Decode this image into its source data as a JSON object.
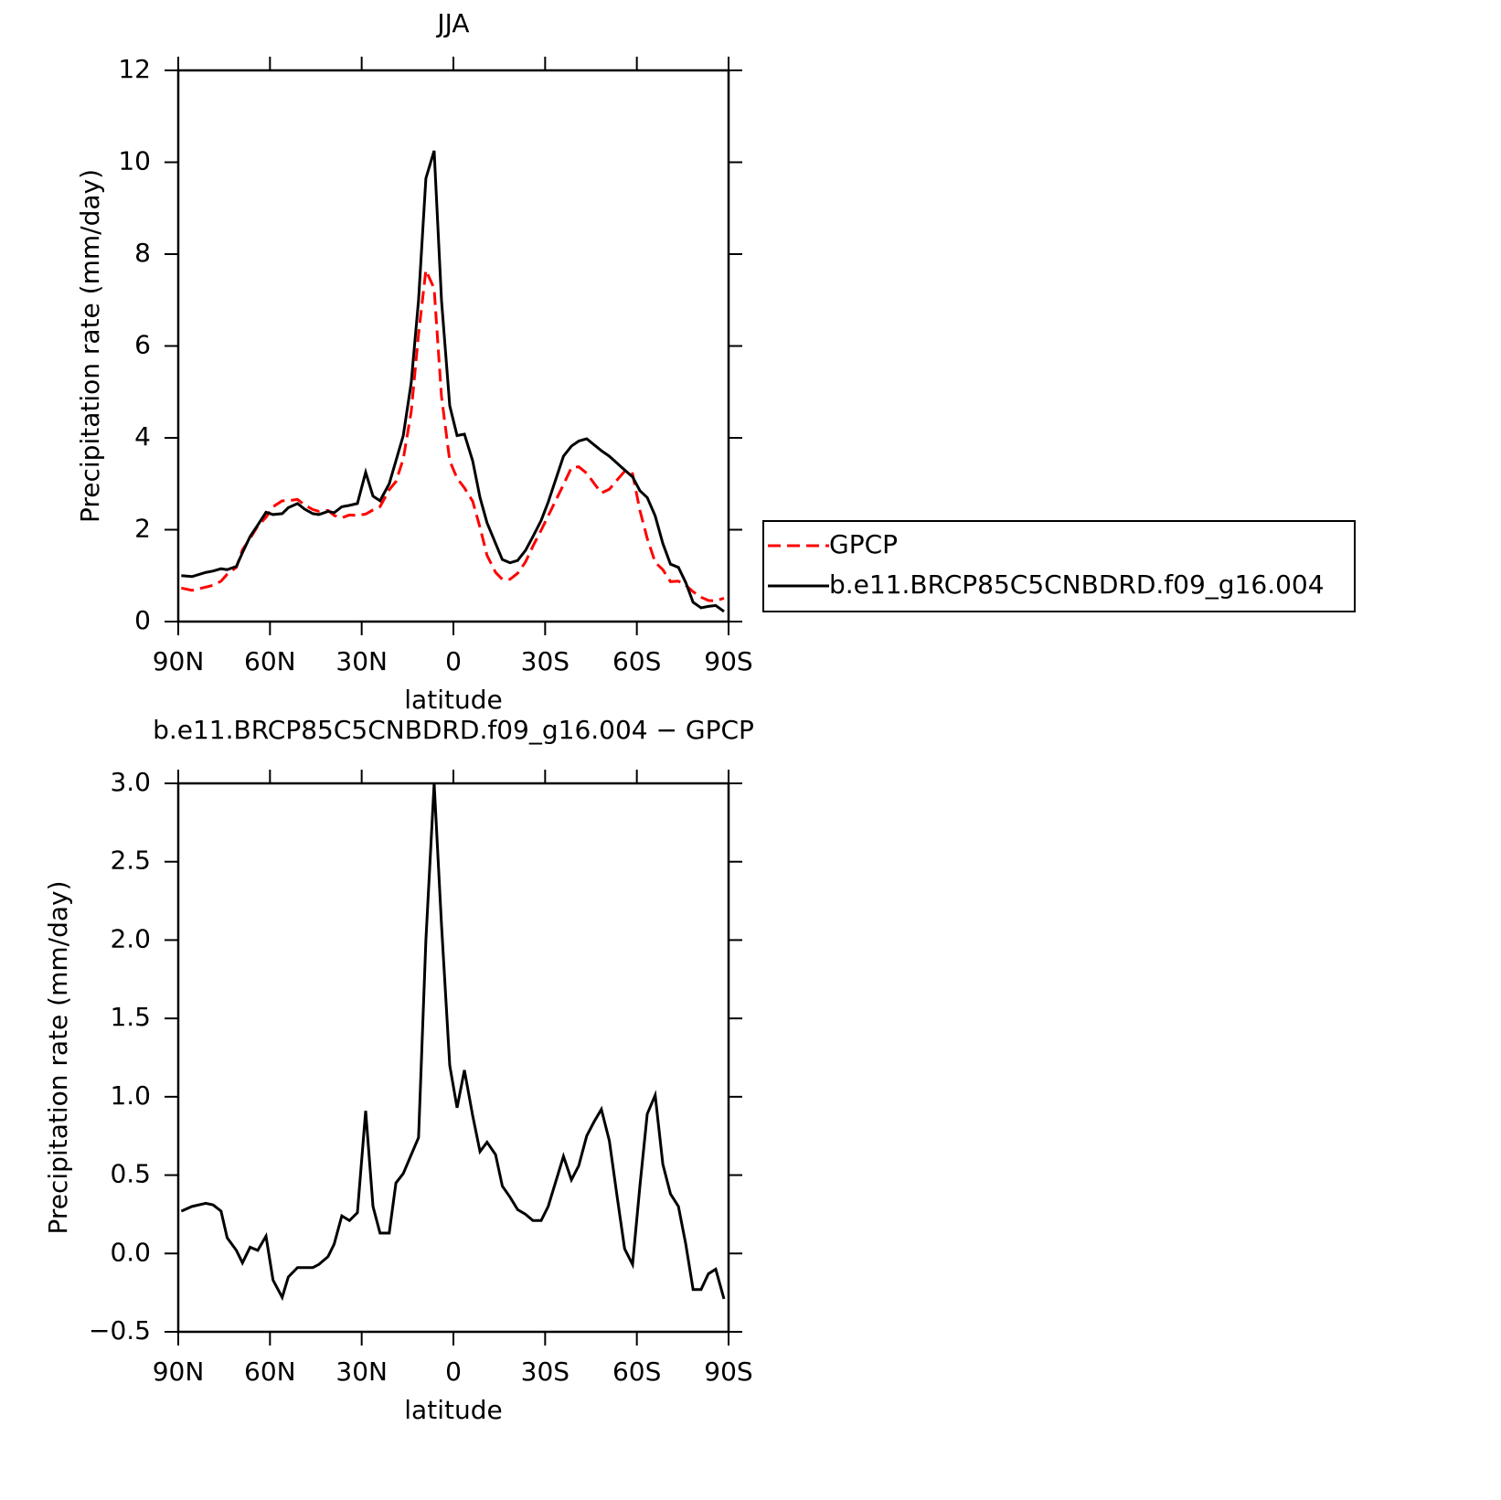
{
  "chart_data": [
    {
      "type": "line",
      "title": "JJA",
      "xlabel": "latitude",
      "ylabel": "Precipitation rate (mm/day)",
      "x": [
        89,
        85.5,
        81,
        78.6,
        76,
        74,
        71,
        69,
        66.5,
        64,
        61.3,
        59,
        56,
        54,
        51,
        48.7,
        46,
        44,
        41,
        39,
        36.5,
        34,
        31.4,
        28.7,
        26.3,
        24,
        21,
        18.8,
        16.4,
        13.8,
        11.4,
        9,
        6.3,
        3.9,
        1.2,
        -1.2,
        -3.6,
        -6.3,
        -8.7,
        -11,
        -13.8,
        -16,
        -18.5,
        -21,
        -23.6,
        -26,
        -28.7,
        -31,
        -33.5,
        -36,
        -38.6,
        -41,
        -43.6,
        -46,
        -48.4,
        -51,
        -53.5,
        -56,
        -58.6,
        -61,
        -63.4,
        -66,
        -68.5,
        -71,
        -73.6,
        -76,
        -78.4,
        -81,
        -83.4,
        -85.8,
        -88.5
      ],
      "series": [
        {
          "name": "GPCP",
          "color": "#ff0000",
          "dash": "dashed",
          "values": [
            0.73,
            0.68,
            0.75,
            0.79,
            0.88,
            1.03,
            1.18,
            1.56,
            1.81,
            2.08,
            2.27,
            2.5,
            2.63,
            2.63,
            2.66,
            2.54,
            2.44,
            2.4,
            2.42,
            2.31,
            2.26,
            2.32,
            2.31,
            2.34,
            2.43,
            2.5,
            2.87,
            3.05,
            3.54,
            4.57,
            6.26,
            7.65,
            7.25,
            4.9,
            3.5,
            3.12,
            2.91,
            2.62,
            2.05,
            1.44,
            1.07,
            0.92,
            0.92,
            1.05,
            1.3,
            1.64,
            1.99,
            2.3,
            2.64,
            2.98,
            3.35,
            3.37,
            3.23,
            3.01,
            2.8,
            2.88,
            3.08,
            3.27,
            3.22,
            2.42,
            1.81,
            1.29,
            1.13,
            0.87,
            0.88,
            0.79,
            0.65,
            0.53,
            0.46,
            0.45,
            0.51
          ]
        },
        {
          "name": "b.e11.BRCP85C5CNBDRD.f09_g16.004",
          "color": "#000000",
          "dash": "solid",
          "values": [
            1.0,
            0.98,
            1.07,
            1.1,
            1.15,
            1.13,
            1.2,
            1.5,
            1.85,
            2.1,
            2.38,
            2.33,
            2.35,
            2.48,
            2.57,
            2.45,
            2.35,
            2.33,
            2.4,
            2.37,
            2.5,
            2.53,
            2.57,
            3.25,
            2.73,
            2.63,
            3.0,
            3.5,
            4.05,
            5.2,
            7.0,
            9.65,
            10.25,
            7.0,
            4.7,
            4.05,
            4.08,
            3.5,
            2.7,
            2.15,
            1.7,
            1.35,
            1.28,
            1.33,
            1.55,
            1.85,
            2.2,
            2.6,
            3.1,
            3.6,
            3.82,
            3.93,
            3.98,
            3.85,
            3.72,
            3.6,
            3.45,
            3.3,
            3.15,
            2.85,
            2.7,
            2.3,
            1.7,
            1.25,
            1.18,
            0.85,
            0.42,
            0.3,
            0.33,
            0.35,
            0.22
          ]
        }
      ],
      "xlim": [
        90,
        -90
      ],
      "xticks": [
        {
          "value": 90,
          "label": "90N"
        },
        {
          "value": 60,
          "label": "60N"
        },
        {
          "value": 30,
          "label": "30N"
        },
        0,
        {
          "value": -30,
          "label": "30S"
        },
        {
          "value": -60,
          "label": "60S"
        },
        {
          "value": -90,
          "label": "90S"
        }
      ],
      "ylim": [
        0,
        12
      ],
      "yticks": [
        0,
        2,
        4,
        6,
        8,
        10,
        12
      ],
      "legend": "right"
    },
    {
      "type": "line",
      "title": "b.e11.BRCP85C5CNBDRD.f09_g16.004 − GPCP",
      "xlabel": "latitude",
      "ylabel": "Precipitation rate (mm/day)",
      "x": [
        89,
        85.5,
        81,
        78.6,
        76,
        74,
        71,
        69,
        66.5,
        64,
        61.3,
        59,
        56,
        54,
        51,
        48.7,
        46,
        44,
        41,
        39,
        36.5,
        34,
        31.4,
        28.7,
        26.3,
        24,
        21,
        18.8,
        16.4,
        13.8,
        11.4,
        9,
        6.3,
        3.9,
        1.2,
        -1.2,
        -3.6,
        -6.3,
        -8.7,
        -11,
        -13.8,
        -16,
        -18.5,
        -21,
        -23.6,
        -26,
        -28.7,
        -31,
        -33.5,
        -36,
        -38.6,
        -41,
        -43.6,
        -46,
        -48.4,
        -51,
        -53.5,
        -56,
        -58.6,
        -61,
        -63.4,
        -66,
        -68.5,
        -71,
        -73.6,
        -76,
        -78.4,
        -81,
        -83.4,
        -85.8,
        -88.5
      ],
      "series": [
        {
          "color": "#000000",
          "dash": "solid",
          "values": [
            0.27,
            0.3,
            0.32,
            0.31,
            0.27,
            0.1,
            0.02,
            -0.06,
            0.04,
            0.02,
            0.11,
            -0.17,
            -0.28,
            -0.15,
            -0.09,
            -0.09,
            -0.09,
            -0.07,
            -0.02,
            0.06,
            0.24,
            0.21,
            0.26,
            0.91,
            0.3,
            0.13,
            0.13,
            0.45,
            0.51,
            0.63,
            0.74,
            2.0,
            3.0,
            2.1,
            1.2,
            0.93,
            1.17,
            0.88,
            0.65,
            0.71,
            0.63,
            0.43,
            0.36,
            0.28,
            0.25,
            0.21,
            0.21,
            0.3,
            0.46,
            0.62,
            0.47,
            0.56,
            0.75,
            0.84,
            0.92,
            0.72,
            0.37,
            0.03,
            -0.07,
            0.43,
            0.89,
            1.01,
            0.57,
            0.38,
            0.3,
            0.06,
            -0.23,
            -0.23,
            -0.13,
            -0.1,
            -0.29
          ]
        }
      ],
      "xlim": [
        90,
        -90
      ],
      "xticks": [
        {
          "value": 90,
          "label": "90N"
        },
        {
          "value": 60,
          "label": "60N"
        },
        {
          "value": 30,
          "label": "30N"
        },
        0,
        {
          "value": -30,
          "label": "30S"
        },
        {
          "value": -60,
          "label": "60S"
        },
        {
          "value": -90,
          "label": "90S"
        }
      ],
      "ylim": [
        -0.5,
        3
      ],
      "yticks": [
        {
          "value": -0.5,
          "label": "−0.5"
        },
        {
          "value": 0,
          "label": "0.0"
        },
        0.5,
        {
          "value": 1,
          "label": "1.0"
        },
        1.5,
        {
          "value": 2,
          "label": "2.0"
        },
        2.5,
        {
          "value": 3,
          "label": "3.0"
        }
      ]
    }
  ]
}
